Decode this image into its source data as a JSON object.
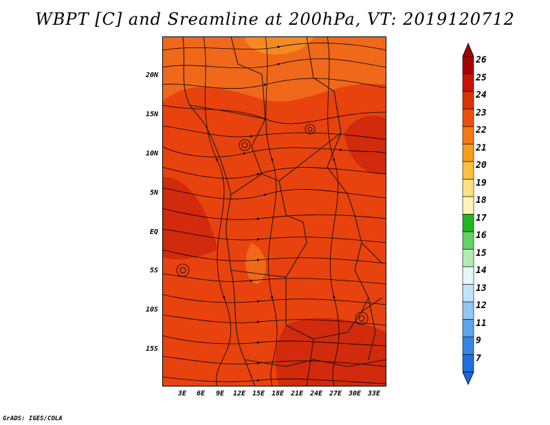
{
  "title": "WBPT [C] and Sreamline at 200hPa, VT: 2019120712",
  "footer": "GrADS: IGES/COLA",
  "map": {
    "lat_labels": [
      "20N",
      "15N",
      "10N",
      "5N",
      "EQ",
      "5S",
      "10S",
      "15S"
    ],
    "lon_labels": [
      "3E",
      "6E",
      "9E",
      "12E",
      "15E",
      "18E",
      "21E",
      "24E",
      "27E",
      "30E",
      "33E"
    ],
    "field_colors": {
      "dominant": "#e8420e",
      "warm": "#d22a0c",
      "cool": "#f0681a",
      "coolest": "#f58a22"
    }
  },
  "colorbar": {
    "labels": [
      "26",
      "25",
      "24",
      "23",
      "22",
      "21",
      "20",
      "19",
      "18",
      "17",
      "16",
      "15",
      "14",
      "13",
      "12",
      "11",
      "9",
      "7"
    ],
    "colors": [
      "#a60000",
      "#c81400",
      "#dc3200",
      "#ec5010",
      "#f57814",
      "#f99b1c",
      "#fbc042",
      "#fde082",
      "#fff4b8",
      "#1fb61f",
      "#64d164",
      "#b4ebb4",
      "#e6f8f8",
      "#bfe4fa",
      "#8fc6f4",
      "#5aa6ee",
      "#3587e4",
      "#1e6ee0"
    ],
    "top_cap_color": "#a00000",
    "bottom_cap_color": "#1e64dc"
  }
}
